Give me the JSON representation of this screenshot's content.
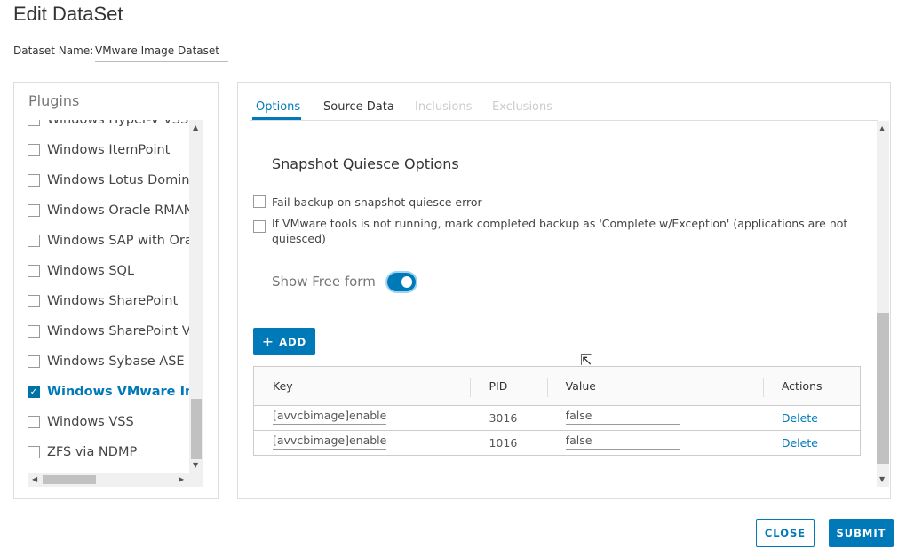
{
  "title": "Edit DataSet",
  "dataset": {
    "label": "Dataset Name:",
    "value": "VMware Image Dataset"
  },
  "plugins": {
    "title": "Plugins",
    "items": [
      {
        "label": "Windows Hyper-V VSS",
        "checked": false
      },
      {
        "label": "Windows ItemPoint",
        "checked": false
      },
      {
        "label": "Windows Lotus Domino",
        "checked": false
      },
      {
        "label": "Windows Oracle RMAN",
        "checked": false
      },
      {
        "label": "Windows SAP with Oracle",
        "checked": false
      },
      {
        "label": "Windows SQL",
        "checked": false
      },
      {
        "label": "Windows SharePoint",
        "checked": false
      },
      {
        "label": "Windows SharePoint VSS",
        "checked": false
      },
      {
        "label": "Windows Sybase ASE",
        "checked": false
      },
      {
        "label": "Windows VMware Image",
        "checked": true
      },
      {
        "label": "Windows VSS",
        "checked": false
      },
      {
        "label": "ZFS via NDMP",
        "checked": false
      }
    ]
  },
  "tabs": [
    {
      "label": "Options",
      "state": "active"
    },
    {
      "label": "Source Data",
      "state": "enabled"
    },
    {
      "label": "Inclusions",
      "state": "disabled"
    },
    {
      "label": "Exclusions",
      "state": "disabled"
    }
  ],
  "options": {
    "section_title": "Snapshot Quiesce Options",
    "opt1": "Fail backup on snapshot quiesce error",
    "opt2": "If VMware tools is not running, mark completed backup as 'Complete w/Exception' (applications are not quiesced)",
    "free_form_label": "Show Free form",
    "free_form_on": true,
    "add_label": "ADD"
  },
  "table": {
    "headers": [
      "Key",
      "PID",
      "Value",
      "Actions"
    ],
    "rows": [
      {
        "key": "[avvcbimage]enable_q",
        "pid": "3016",
        "value": "false",
        "action": "Delete"
      },
      {
        "key": "[avvcbimage]enable_q",
        "pid": "1016",
        "value": "false",
        "action": "Delete"
      }
    ]
  },
  "footer": {
    "close": "CLOSE",
    "submit": "SUBMIT"
  },
  "colors": {
    "accent": "#0079b8"
  }
}
